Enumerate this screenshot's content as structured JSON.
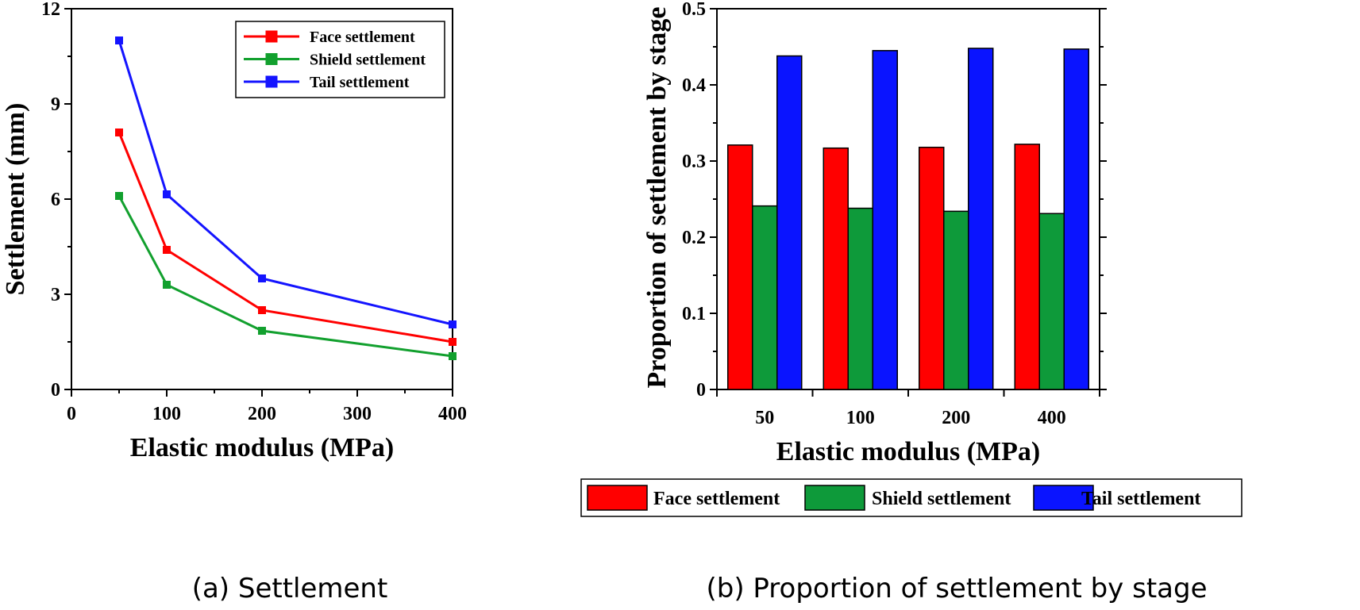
{
  "chart_data": [
    {
      "type": "line",
      "xlabel": "Elastic modulus (MPa)",
      "ylabel": "Settlement (mm)",
      "xlim": [
        0,
        400
      ],
      "ylim": [
        0,
        12
      ],
      "xticks": [
        0,
        100,
        200,
        300,
        400
      ],
      "yticks": [
        0,
        3,
        6,
        9,
        12
      ],
      "x": [
        50,
        100,
        200,
        400
      ],
      "legend_position": "top-right",
      "grid": false,
      "series": [
        {
          "name": "Face settlement",
          "color": "#ff0000",
          "values": [
            8.1,
            4.4,
            2.5,
            1.5
          ]
        },
        {
          "name": "Shield settlement",
          "color": "#12a02e",
          "values": [
            6.1,
            3.3,
            1.85,
            1.05
          ]
        },
        {
          "name": "Tail settlement",
          "color": "#1414ff",
          "values": [
            11.0,
            6.15,
            3.5,
            2.05
          ]
        }
      ],
      "caption": "(a) Settlement"
    },
    {
      "type": "bar",
      "xlabel": "Elastic modulus (MPa)",
      "ylabel": "Proportion of settlement by stage",
      "categories": [
        "50",
        "100",
        "200",
        "400"
      ],
      "ylim": [
        0,
        0.5
      ],
      "yticks": [
        0,
        0.1,
        0.2,
        0.3,
        0.4,
        0.5
      ],
      "legend_position": "bottom",
      "grid": false,
      "series": [
        {
          "name": "Face settlement",
          "color": "#ff0000",
          "values": [
            0.321,
            0.317,
            0.318,
            0.322
          ]
        },
        {
          "name": "Shield settlement",
          "color": "#0e9a3a",
          "values": [
            0.241,
            0.238,
            0.234,
            0.231
          ]
        },
        {
          "name": "Tail settlement",
          "color": "#0a14ff",
          "values": [
            0.438,
            0.445,
            0.448,
            0.447
          ]
        }
      ],
      "caption": "(b) Proportion of settlement by stage"
    }
  ]
}
